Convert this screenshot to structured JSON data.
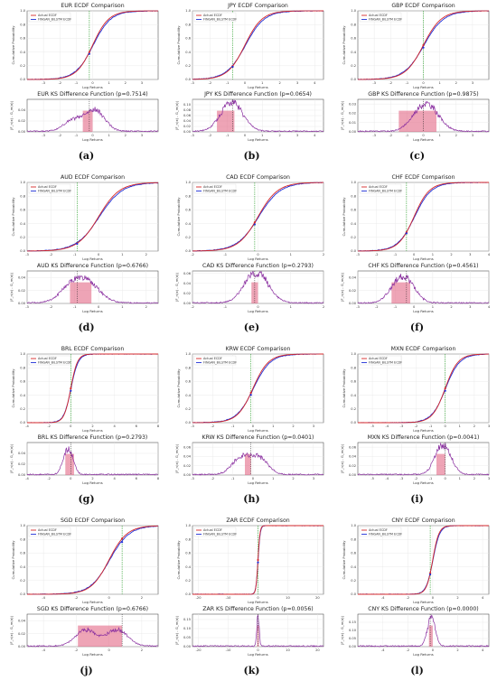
{
  "figure": {
    "colors": {
      "actual": "#d62728",
      "synthetic": "#1f2fd6",
      "diff": "#8a2fa0",
      "shade": "#e05a7a",
      "vline": "#2ca02c"
    },
    "legend": {
      "actual": "Actual ECDF",
      "synthetic": "FINGAN_BiLSTM ECDF"
    },
    "ecdf_ylabel": "Cumulative Probability",
    "ks_ylabel": "|F_n(x) - G_m(x)|",
    "xlabel": "Log Returns",
    "panels": [
      {
        "label": "(a)",
        "ecdf_title": "EUR ECDF Comparison",
        "ks_title": "EUR KS Difference Function (p=0.7514)",
        "xlim": [
          -4,
          4
        ],
        "xticks": [
          -3,
          -2,
          -1,
          0,
          1,
          2,
          3
        ],
        "ecdf_yticks": [
          0.0,
          0.2,
          0.4,
          0.6,
          0.8,
          1.0
        ],
        "ks_yticks": [
          0.0,
          0.02,
          0.04
        ],
        "ks_ylim": [
          0,
          0.06
        ],
        "vline_x": -0.2,
        "spread": 0.9,
        "peaks": [
          -1.2,
          0.0,
          0.3
        ],
        "band": [
          -0.6,
          0.0
        ]
      },
      {
        "label": "(b)",
        "ecdf_title": "JPY ECDF Comparison",
        "ks_title": "JPY KS Difference Function (p=0.0654)",
        "xlim": [
          -3,
          4.5
        ],
        "xticks": [
          -3,
          -2,
          -1,
          0,
          1,
          2,
          3,
          4
        ],
        "ecdf_yticks": [
          0.0,
          0.2,
          0.4,
          0.6,
          0.8,
          1.0
        ],
        "ks_yticks": [
          0.0,
          0.02,
          0.04,
          0.06,
          0.08,
          0.1
        ],
        "ks_ylim": [
          0,
          0.12
        ],
        "vline_x": -0.7,
        "spread": 0.9,
        "peaks": [
          -1.0,
          -0.5
        ],
        "band": [
          -1.6,
          -0.6
        ]
      },
      {
        "label": "(c)",
        "ecdf_title": "GBP ECDF Comparison",
        "ks_title": "GBP KS Difference Function (p=0.9875)",
        "xlim": [
          -4,
          4
        ],
        "xticks": [
          -3,
          -2,
          -1,
          0,
          1,
          2,
          3
        ],
        "ecdf_yticks": [
          0.0,
          0.2,
          0.4,
          0.6,
          0.8,
          1.0
        ],
        "ks_yticks": [
          0.0,
          0.01,
          0.02,
          0.03
        ],
        "ks_ylim": [
          0,
          0.035
        ],
        "vline_x": 0.0,
        "spread": 1.0,
        "peaks": [
          -0.2,
          0.5
        ],
        "band": [
          -1.5,
          0.8
        ]
      },
      {
        "label": "(d)",
        "ecdf_title": "AUD ECDF Comparison",
        "ks_title": "AUD KS Difference Function (p=0.6766)",
        "xlim": [
          -3,
          2.5
        ],
        "xticks": [
          -3,
          -2,
          -1,
          0,
          1,
          2
        ],
        "ecdf_yticks": [
          0.0,
          0.2,
          0.4,
          0.6,
          0.8,
          1.0
        ],
        "ks_yticks": [
          0.0,
          0.02,
          0.04
        ],
        "ks_ylim": [
          0,
          0.05
        ],
        "vline_x": -0.9,
        "spread": 0.8,
        "peaks": [
          -1.1,
          -0.4
        ],
        "band": [
          -1.2,
          -0.3
        ]
      },
      {
        "label": "(e)",
        "ecdf_title": "CAD ECDF Comparison",
        "ks_title": "CAD KS Difference Function (p=0.2793)",
        "xlim": [
          -2,
          2
        ],
        "xticks": [
          -2,
          -1,
          0,
          1,
          2
        ],
        "ecdf_yticks": [
          0.0,
          0.2,
          0.4,
          0.6,
          0.8,
          1.0
        ],
        "ks_yticks": [
          0.0,
          0.02,
          0.04,
          0.06
        ],
        "ks_ylim": [
          0,
          0.065
        ],
        "vline_x": -0.1,
        "spread": 0.55,
        "peaks": [
          -0.1,
          0.0
        ],
        "band": [
          -0.2,
          0.0
        ]
      },
      {
        "label": "(f)",
        "ecdf_title": "CHF ECDF Comparison",
        "ks_title": "CHF KS Difference Function (p=0.4561)",
        "xlim": [
          -3,
          4
        ],
        "xticks": [
          -3,
          -2,
          -1,
          0,
          1,
          2,
          3,
          4
        ],
        "ecdf_yticks": [
          0.0,
          0.2,
          0.4,
          0.6,
          0.8,
          1.0
        ],
        "ks_yticks": [
          0.0,
          0.02,
          0.04
        ],
        "ks_ylim": [
          0,
          0.05
        ],
        "vline_x": -0.4,
        "spread": 0.75,
        "peaks": [
          -0.9,
          -0.3
        ],
        "band": [
          -1.2,
          -0.2
        ]
      },
      {
        "label": "(g)",
        "ecdf_title": "BRL ECDF Comparison",
        "ks_title": "BRL KS Difference Function (p=0.2793)",
        "xlim": [
          -4,
          8
        ],
        "xticks": [
          -4,
          -2,
          0,
          2,
          4,
          6,
          8
        ],
        "ecdf_yticks": [
          0.0,
          0.2,
          0.4,
          0.6,
          0.8,
          1.0
        ],
        "ks_yticks": [
          0.0,
          0.02,
          0.04
        ],
        "ks_ylim": [
          0,
          0.06
        ],
        "vline_x": 0.0,
        "spread": 0.55,
        "peaks": [
          -0.5,
          0.0
        ],
        "band": [
          -0.5,
          0.3
        ]
      },
      {
        "label": "(h)",
        "ecdf_title": "KRW ECDF Comparison",
        "ks_title": "KRW KS Difference Function (p=0.0401)",
        "xlim": [
          -3,
          3.5
        ],
        "xticks": [
          -3,
          -2,
          -1,
          0,
          1,
          2,
          3
        ],
        "ecdf_yticks": [
          0.0,
          0.2,
          0.4,
          0.6,
          0.8,
          1.0
        ],
        "ks_yticks": [
          0.0,
          0.02,
          0.04,
          0.06
        ],
        "ks_ylim": [
          0,
          0.07
        ],
        "vline_x": -0.1,
        "spread": 0.7,
        "peaks": [
          -0.6,
          0.3
        ],
        "band": [
          -0.4,
          -0.1
        ]
      },
      {
        "label": "(i)",
        "ecdf_title": "MXN ECDF Comparison",
        "ks_title": "MXN KS Difference Function (p=0.0041)",
        "xlim": [
          -6,
          3
        ],
        "xticks": [
          -5,
          -4,
          -3,
          -2,
          -1,
          0,
          1,
          2,
          3
        ],
        "ecdf_yticks": [
          0.0,
          0.2,
          0.4,
          0.6,
          0.8,
          1.0
        ],
        "ks_yticks": [
          0.0,
          0.02,
          0.04,
          0.06
        ],
        "ks_ylim": [
          0,
          0.07
        ],
        "vline_x": 0.0,
        "spread": 0.8,
        "peaks": [
          -0.3,
          0.0
        ],
        "band": [
          -0.6,
          0.0
        ]
      },
      {
        "label": "(j)",
        "ecdf_title": "SGD ECDF Comparison",
        "ks_title": "SGD KS Difference Function (p=0.6766)",
        "xlim": [
          -5,
          3
        ],
        "xticks": [
          -4,
          -2,
          0,
          2
        ],
        "ecdf_yticks": [
          0.0,
          0.2,
          0.4,
          0.6,
          0.8,
          1.0
        ],
        "ks_yticks": [
          0.0,
          0.02,
          0.04
        ],
        "ks_ylim": [
          0,
          0.05
        ],
        "vline_x": 0.8,
        "spread": 1.0,
        "peaks": [
          -1.4,
          0.5
        ],
        "band": [
          -1.9,
          0.8
        ]
      },
      {
        "label": "(k)",
        "ecdf_title": "ZAR ECDF Comparison",
        "ks_title": "ZAR KS Difference Function (p=0.0056)",
        "xlim": [
          -22,
          22
        ],
        "xticks": [
          -20,
          -10,
          0,
          10,
          20
        ],
        "ecdf_yticks": [
          0.0,
          0.2,
          0.4,
          0.6,
          0.8,
          1.0
        ],
        "ks_yticks": [
          0.0,
          0.05,
          0.1,
          0.15
        ],
        "ks_ylim": [
          0,
          0.18
        ],
        "vline_x": 0.0,
        "spread": 0.6,
        "peaks": [
          0.0
        ],
        "band": [
          -0.3,
          0.3
        ]
      },
      {
        "label": "(l)",
        "ecdf_title": "CNY ECDF Comparison",
        "ks_title": "CNY KS Difference Function (p=0.0000)",
        "xlim": [
          -6,
          4.5
        ],
        "xticks": [
          -4,
          -2,
          0,
          2,
          4
        ],
        "ecdf_yticks": [
          0.0,
          0.2,
          0.4,
          0.6,
          0.8,
          1.0
        ],
        "ks_yticks": [
          0.0,
          0.05,
          0.1,
          0.15
        ],
        "ks_ylim": [
          0,
          0.2
        ],
        "vline_x": -0.2,
        "spread": 0.45,
        "peaks": [
          -0.2,
          0.0
        ],
        "band": [
          -0.3,
          0.0
        ]
      }
    ]
  }
}
